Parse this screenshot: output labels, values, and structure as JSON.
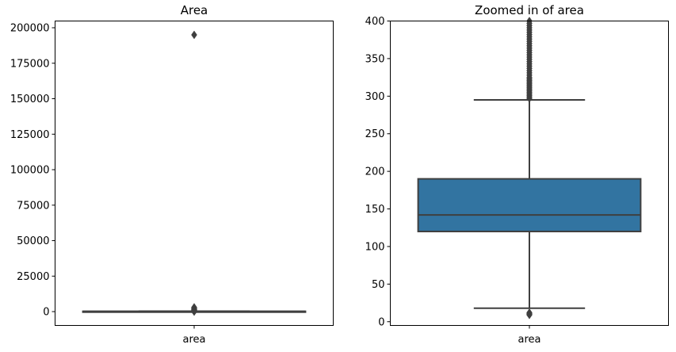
{
  "chart_data": [
    {
      "type": "box",
      "title": "Area",
      "categories": [
        "area"
      ],
      "xlabel": "",
      "ylabel": "",
      "ylim": [
        -9750,
        204750
      ],
      "yticks": [
        0,
        25000,
        50000,
        75000,
        100000,
        125000,
        150000,
        175000,
        200000
      ],
      "grid": false,
      "box": {
        "q1": 120,
        "median": 142,
        "q3": 190,
        "whisker_low": 18,
        "whisker_high": 295
      },
      "outliers": [
        195000,
        3000,
        2600,
        2200,
        1800,
        1500,
        1200,
        1000,
        800,
        700,
        600,
        500,
        450,
        400,
        350,
        320,
        300,
        12,
        10
      ],
      "colors": {
        "box": "#3274a1",
        "line": "#3f3f3f"
      }
    },
    {
      "type": "box",
      "title": "Zoomed in of area",
      "categories": [
        "area"
      ],
      "xlabel": "",
      "ylabel": "",
      "ylim": [
        -5,
        400
      ],
      "yticks": [
        0,
        50,
        100,
        150,
        200,
        250,
        300,
        350,
        400
      ],
      "grid": false,
      "box": {
        "q1": 120,
        "median": 142,
        "q3": 190,
        "whisker_low": 18,
        "whisker_high": 295
      },
      "outliers": [
        297,
        299,
        301,
        303,
        305,
        307,
        309,
        311,
        313,
        315,
        317,
        319,
        321,
        323,
        325,
        328,
        331,
        334,
        337,
        340,
        343,
        346,
        349,
        352,
        355,
        358,
        361,
        364,
        367,
        370,
        373,
        376,
        379,
        382,
        385,
        388,
        391,
        394,
        397,
        400,
        12,
        11,
        10,
        9
      ],
      "colors": {
        "box": "#3274a1",
        "line": "#3f3f3f"
      }
    }
  ]
}
